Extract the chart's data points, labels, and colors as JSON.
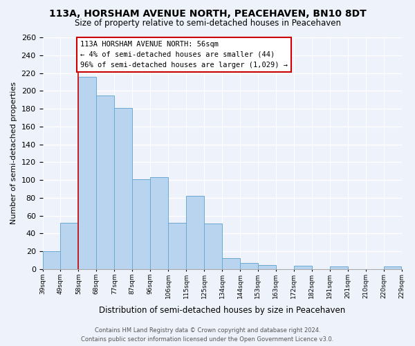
{
  "title": "113A, HORSHAM AVENUE NORTH, PEACEHAVEN, BN10 8DT",
  "subtitle": "Size of property relative to semi-detached houses in Peacehaven",
  "xlabel": "Distribution of semi-detached houses by size in Peacehaven",
  "ylabel": "Number of semi-detached properties",
  "bin_labels": [
    "39sqm",
    "49sqm",
    "58sqm",
    "68sqm",
    "77sqm",
    "87sqm",
    "96sqm",
    "106sqm",
    "115sqm",
    "125sqm",
    "134sqm",
    "144sqm",
    "153sqm",
    "163sqm",
    "172sqm",
    "182sqm",
    "191sqm",
    "201sqm",
    "210sqm",
    "220sqm",
    "229sqm"
  ],
  "bar_values": [
    20,
    52,
    216,
    195,
    181,
    101,
    103,
    52,
    82,
    51,
    12,
    7,
    5,
    0,
    4,
    0,
    3,
    0,
    0,
    3
  ],
  "bar_color": "#b8d4ee",
  "bar_edge_color": "#6aaad4",
  "annotation_text": "113A HORSHAM AVENUE NORTH: 56sqm\n← 4% of semi-detached houses are smaller (44)\n96% of semi-detached houses are larger (1,029) →",
  "annotation_box_color": "#ffffff",
  "annotation_box_edge": "#cc0000",
  "highlight_line_color": "#cc0000",
  "ylim": [
    0,
    260
  ],
  "yticks": [
    0,
    20,
    40,
    60,
    80,
    100,
    120,
    140,
    160,
    180,
    200,
    220,
    240,
    260
  ],
  "footer_line1": "Contains HM Land Registry data © Crown copyright and database right 2024.",
  "footer_line2": "Contains public sector information licensed under the Open Government Licence v3.0.",
  "bg_color": "#eef2fb"
}
